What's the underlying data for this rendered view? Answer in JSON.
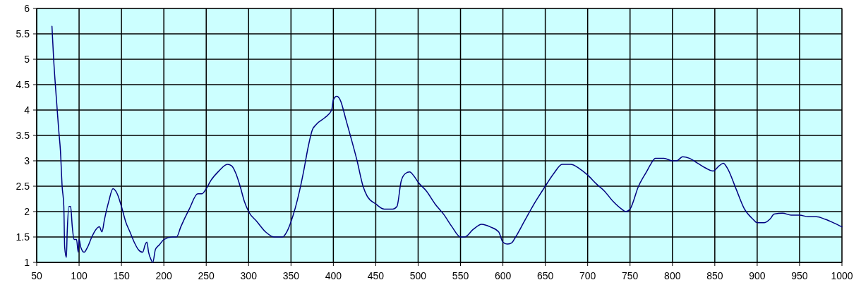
{
  "chart_data": {
    "type": "line",
    "xlim": [
      50,
      1000
    ],
    "ylim": [
      1,
      6
    ],
    "xticks": [
      50,
      100,
      150,
      200,
      250,
      300,
      350,
      400,
      450,
      500,
      550,
      600,
      650,
      700,
      750,
      800,
      850,
      900,
      950,
      1000
    ],
    "yticks": [
      1,
      1.5,
      2,
      2.5,
      3,
      3.5,
      4,
      4.5,
      5,
      5.5,
      6
    ],
    "grid": true,
    "marker": "none",
    "line_style": "solid",
    "series": [
      {
        "color": "#000080",
        "x": [
          68,
          70,
          72,
          74,
          76,
          78,
          80,
          82,
          83,
          85,
          86,
          88,
          90,
          92,
          94,
          97,
          99,
          100,
          102,
          106,
          110,
          115,
          120,
          124,
          127,
          130,
          135,
          140,
          145,
          150,
          155,
          160,
          165,
          170,
          175,
          178,
          180,
          182,
          185,
          187,
          190,
          195,
          200,
          210,
          215,
          220,
          230,
          240,
          245,
          250,
          255,
          265,
          275,
          280,
          285,
          290,
          295,
          300,
          310,
          320,
          330,
          340,
          345,
          350,
          360,
          365,
          370,
          375,
          380,
          390,
          398,
          400,
          404,
          408,
          415,
          420,
          428,
          435,
          440,
          450,
          460,
          470,
          475,
          480,
          485,
          490,
          495,
          500,
          510,
          520,
          530,
          540,
          550,
          555,
          565,
          575,
          585,
          595,
          600,
          605,
          610,
          615,
          625,
          635,
          650,
          660,
          670,
          680,
          690,
          700,
          710,
          720,
          730,
          740,
          745,
          750,
          760,
          770,
          775,
          780,
          790,
          800,
          805,
          812,
          820,
          830,
          840,
          848,
          855,
          860,
          865,
          875,
          885,
          895,
          900,
          908,
          915,
          920,
          930,
          940,
          950,
          960,
          970,
          980,
          990,
          1000
        ],
        "values": [
          5.65,
          5.0,
          4.5,
          4.05,
          3.6,
          3.2,
          2.5,
          2.1,
          1.3,
          1.1,
          1.6,
          2.1,
          2.1,
          1.7,
          1.45,
          1.45,
          1.2,
          1.45,
          1.3,
          1.2,
          1.3,
          1.5,
          1.65,
          1.7,
          1.6,
          1.85,
          2.2,
          2.45,
          2.35,
          2.1,
          1.8,
          1.6,
          1.4,
          1.25,
          1.2,
          1.35,
          1.4,
          1.2,
          1.05,
          1.0,
          1.25,
          1.35,
          1.45,
          1.5,
          1.5,
          1.7,
          2.05,
          2.35,
          2.35,
          2.45,
          2.6,
          2.8,
          2.93,
          2.9,
          2.75,
          2.5,
          2.2,
          2.0,
          1.8,
          1.6,
          1.5,
          1.5,
          1.6,
          1.8,
          2.4,
          2.8,
          3.25,
          3.6,
          3.72,
          3.85,
          4.0,
          4.2,
          4.27,
          4.2,
          3.8,
          3.5,
          3.0,
          2.5,
          2.3,
          2.15,
          2.05,
          2.05,
          2.1,
          2.6,
          2.75,
          2.78,
          2.7,
          2.58,
          2.4,
          2.15,
          1.95,
          1.7,
          1.5,
          1.5,
          1.65,
          1.75,
          1.7,
          1.6,
          1.4,
          1.36,
          1.38,
          1.5,
          1.8,
          2.1,
          2.5,
          2.75,
          2.93,
          2.93,
          2.85,
          2.72,
          2.55,
          2.4,
          2.2,
          2.05,
          2.0,
          2.05,
          2.5,
          2.8,
          2.95,
          3.05,
          3.05,
          3.0,
          3.0,
          3.08,
          3.05,
          2.95,
          2.85,
          2.8,
          2.9,
          2.95,
          2.85,
          2.45,
          2.05,
          1.85,
          1.78,
          1.78,
          1.85,
          1.95,
          1.97,
          1.93,
          1.93,
          1.9,
          1.9,
          1.85,
          1.78,
          1.7
        ]
      }
    ]
  }
}
